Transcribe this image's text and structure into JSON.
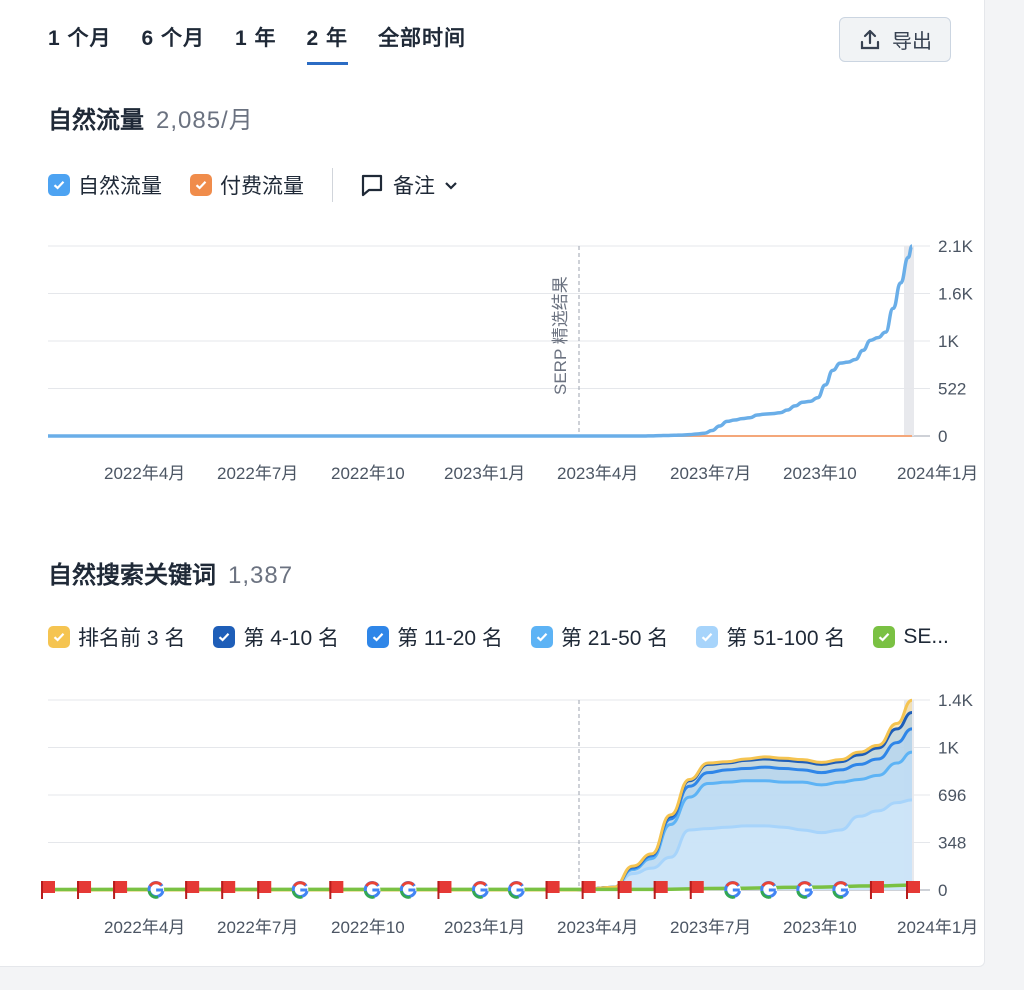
{
  "tabs": [
    {
      "label": "1 个月",
      "active": false
    },
    {
      "label": "6 个月",
      "active": false
    },
    {
      "label": "1 年",
      "active": false
    },
    {
      "label": "2 年",
      "active": true
    },
    {
      "label": "全部时间",
      "active": false
    }
  ],
  "export_label": "导出",
  "traffic": {
    "title": "自然流量",
    "value": "2,085/月",
    "legend": [
      {
        "label": "自然流量",
        "color": "#4da3f2"
      },
      {
        "label": "付费流量",
        "color": "#f08c4b"
      }
    ],
    "notes_label": "备注"
  },
  "keywords": {
    "title": "自然搜索关键词",
    "value": "1,387",
    "legend": [
      {
        "label": "排名前 3 名",
        "color": "#f5c451"
      },
      {
        "label": "第 4-10 名",
        "color": "#1e5eb8"
      },
      {
        "label": "第 11-20 名",
        "color": "#2f86e8"
      },
      {
        "label": "第 21-50 名",
        "color": "#5db3f5"
      },
      {
        "label": "第 51-100 名",
        "color": "#a7d4fb"
      },
      {
        "label": "SE...",
        "color": "#7ac143"
      }
    ]
  },
  "chart_data": [
    {
      "type": "line",
      "title": "自然流量",
      "x_ticks": [
        "2022年4月",
        "2022年7月",
        "2022年10",
        "2023年1月",
        "2023年4月",
        "2023年7月",
        "2023年10",
        "2024年1月"
      ],
      "y_ticks": [
        "2.1K",
        "1.6K",
        "1K",
        "522",
        "0"
      ],
      "ylim": [
        0,
        2085
      ],
      "annotation": "SERP 精选结果",
      "series": [
        {
          "name": "自然流量",
          "color": "#6aaee8",
          "x": [
            0,
            0.5,
            1,
            1.5,
            2,
            2.5,
            3,
            3.5,
            4,
            4.5,
            5,
            5.3,
            5.6,
            5.9,
            6.2,
            6.5,
            6.8,
            7.0,
            7.2,
            7.4,
            7.55,
            7.7,
            7.8,
            8.0,
            8.2,
            8.4,
            8.6,
            8.8,
            9.0,
            9.2,
            9.4,
            9.6,
            9.8,
            10.0,
            10.2,
            10.4,
            10.6,
            10.8,
            11.0,
            11.2,
            11.4,
            11.6,
            11.8,
            12.0,
            12.2,
            12.4,
            12.6,
            12.8,
            13.0,
            13.2,
            13.4,
            13.6,
            13.8,
            14.0,
            14.2,
            14.4,
            14.6,
            14.8,
            15.0,
            15.2,
            15.4,
            15.6,
            15.8,
            16.0,
            16.2,
            16.4,
            16.6,
            16.8,
            17.0,
            17.2,
            17.4,
            17.6,
            17.8,
            18.0,
            18.2,
            18.4,
            18.6,
            18.8,
            19.0,
            19.2,
            19.4,
            19.6,
            19.8,
            20.0,
            20.2,
            20.4,
            20.6,
            20.8,
            21.0,
            21.2,
            21.4,
            21.6,
            21.8,
            22.0,
            22.2,
            22.4,
            22.6,
            22.8,
            22.9
          ],
          "y": [
            0,
            0,
            0,
            0,
            0,
            0,
            0,
            0,
            0,
            0,
            0,
            0,
            0,
            0,
            0,
            0,
            0,
            0,
            0,
            0,
            0,
            0,
            0,
            0,
            0,
            0,
            0,
            0,
            0,
            0,
            0,
            0,
            0,
            0,
            0,
            0,
            0,
            0,
            0,
            0,
            0,
            0,
            0,
            0,
            0,
            0,
            0,
            0,
            0,
            0,
            0,
            0,
            0,
            0,
            0,
            0,
            0,
            0,
            0,
            0,
            0,
            0,
            0,
            2,
            4,
            6,
            8,
            10,
            15,
            22,
            30,
            60,
            110,
            160,
            175,
            190,
            200,
            230,
            240,
            245,
            255,
            285,
            330,
            370,
            380,
            420,
            560,
            720,
            800,
            810,
            840,
            940,
            1050,
            1080,
            1140,
            1400,
            1680,
            1960,
            2085
          ]
        },
        {
          "name": "付费流量",
          "color": "#f4a77a",
          "x": [
            0,
            22.9
          ],
          "y": [
            0,
            0
          ]
        }
      ]
    },
    {
      "type": "area",
      "title": "自然搜索关键词",
      "x_ticks": [
        "2022年4月",
        "2022年7月",
        "2022年10",
        "2023年1月",
        "2023年4月",
        "2023年7月",
        "2023年10",
        "2024年1月"
      ],
      "y_ticks": [
        "1.4K",
        "1K",
        "696",
        "348",
        "0"
      ],
      "ylim": [
        0,
        1392
      ],
      "x": [
        0,
        14.0,
        15.0,
        15.5,
        16.0,
        16.5,
        17.0,
        17.5,
        18.0,
        18.5,
        19.0,
        19.5,
        20.0,
        20.5,
        21.0,
        21.5,
        22.0,
        22.5,
        22.9
      ],
      "series": [
        {
          "name": "第 51-100 名",
          "values": [
            0,
            0,
            20,
            120,
            160,
            240,
            440,
            450,
            460,
            470,
            470,
            460,
            440,
            420,
            440,
            540,
            580,
            640,
            660
          ]
        },
        {
          "name": "第 21-50 名",
          "values": [
            0,
            0,
            20,
            150,
            230,
            480,
            680,
            780,
            790,
            800,
            800,
            790,
            790,
            770,
            790,
            810,
            840,
            930,
            1010
          ]
        },
        {
          "name": "第 11-20 名",
          "values": [
            0,
            0,
            20,
            160,
            250,
            520,
            760,
            860,
            880,
            890,
            900,
            890,
            880,
            860,
            880,
            920,
            960,
            1080,
            1180
          ]
        },
        {
          "name": "第 4-10 名",
          "values": [
            0,
            0,
            20,
            170,
            260,
            540,
            800,
            920,
            930,
            950,
            960,
            950,
            940,
            920,
            940,
            990,
            1040,
            1180,
            1300
          ]
        },
        {
          "name": "排名前 3 名",
          "values": [
            0,
            0,
            20,
            175,
            265,
            550,
            810,
            930,
            940,
            960,
            975,
            965,
            955,
            935,
            955,
            1010,
            1060,
            1220,
            1390
          ]
        }
      ],
      "serp_line": {
        "name": "SE...",
        "color": "#7ac143",
        "x": [
          0,
          16,
          18,
          20,
          22,
          22.9
        ],
        "values": [
          4,
          5,
          12,
          20,
          30,
          36
        ]
      },
      "markers": [
        "flag",
        "flag",
        "flag",
        "google",
        "flag",
        "flag",
        "flag",
        "google",
        "flag",
        "google",
        "google",
        "flag",
        "google",
        "google",
        "flag",
        "flag",
        "flag",
        "flag",
        "flag",
        "google",
        "google",
        "google",
        "google",
        "flag",
        "flag"
      ],
      "annotation_line": true
    }
  ]
}
